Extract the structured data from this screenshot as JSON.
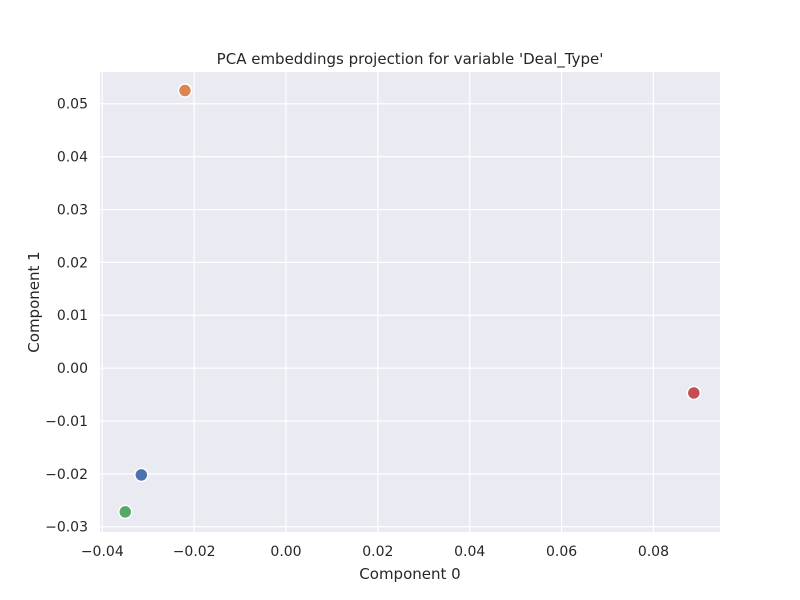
{
  "chart_data": {
    "type": "scatter",
    "title": "PCA embeddings projection for variable 'Deal_Type'",
    "xlabel": "Component 0",
    "ylabel": "Component 1",
    "xlim": [
      -0.0405,
      0.0945
    ],
    "ylim": [
      -0.031,
      0.056
    ],
    "xticks": [
      -0.04,
      -0.02,
      0.0,
      0.02,
      0.04,
      0.06,
      0.08
    ],
    "xtick_labels": [
      "−0.04",
      "−0.02",
      "0.00",
      "0.02",
      "0.04",
      "0.06",
      "0.08"
    ],
    "yticks": [
      -0.03,
      -0.02,
      -0.01,
      0.0,
      0.01,
      0.02,
      0.03,
      0.04,
      0.05
    ],
    "ytick_labels": [
      "−0.03",
      "−0.02",
      "−0.01",
      "0.00",
      "0.01",
      "0.02",
      "0.03",
      "0.04",
      "0.05"
    ],
    "grid": true,
    "background_color": "#eaeaf2",
    "points": [
      {
        "x": -0.0315,
        "y": -0.0202,
        "color": "#4c72b0"
      },
      {
        "x": -0.022,
        "y": 0.0525,
        "color": "#dd8452"
      },
      {
        "x": -0.035,
        "y": -0.0272,
        "color": "#55a868"
      },
      {
        "x": 0.0888,
        "y": -0.0047,
        "color": "#c44e52"
      }
    ]
  }
}
